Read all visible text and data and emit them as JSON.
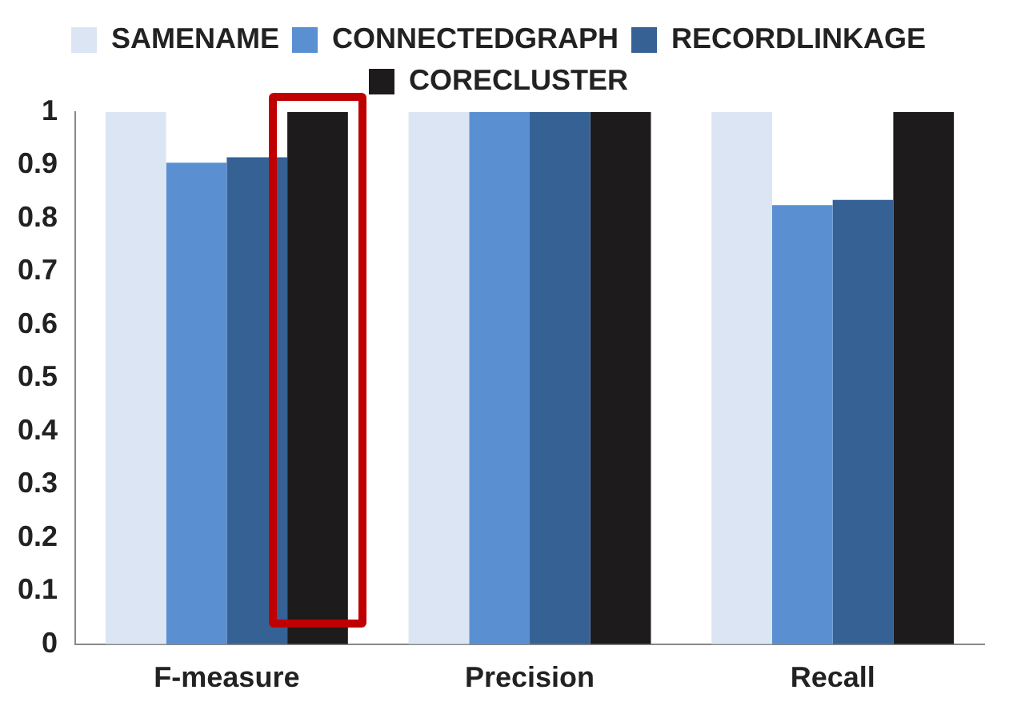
{
  "chart_data": {
    "type": "bar",
    "categories": [
      "F-measure",
      "Precision",
      "Recall"
    ],
    "series": [
      {
        "name": "SAMENAME",
        "color": "#dbe5f3",
        "values": [
          1,
          1,
          1
        ]
      },
      {
        "name": "CONNECTEDGRAPH",
        "color": "#5a8fd2",
        "values": [
          0.905,
          1,
          0.825
        ]
      },
      {
        "name": "RECORDLINKAGE",
        "color": "#356195",
        "values": [
          0.915,
          1,
          0.835
        ]
      },
      {
        "name": "CORECLUSTER",
        "color": "#1e1b1c",
        "values": [
          1,
          1,
          1
        ]
      }
    ],
    "ylim": [
      0,
      1
    ],
    "yticks": [
      0,
      0.1,
      0.2,
      0.3,
      0.4,
      0.5,
      0.6,
      0.7,
      0.8,
      0.9,
      1
    ],
    "grid": false,
    "legend": "top"
  }
}
